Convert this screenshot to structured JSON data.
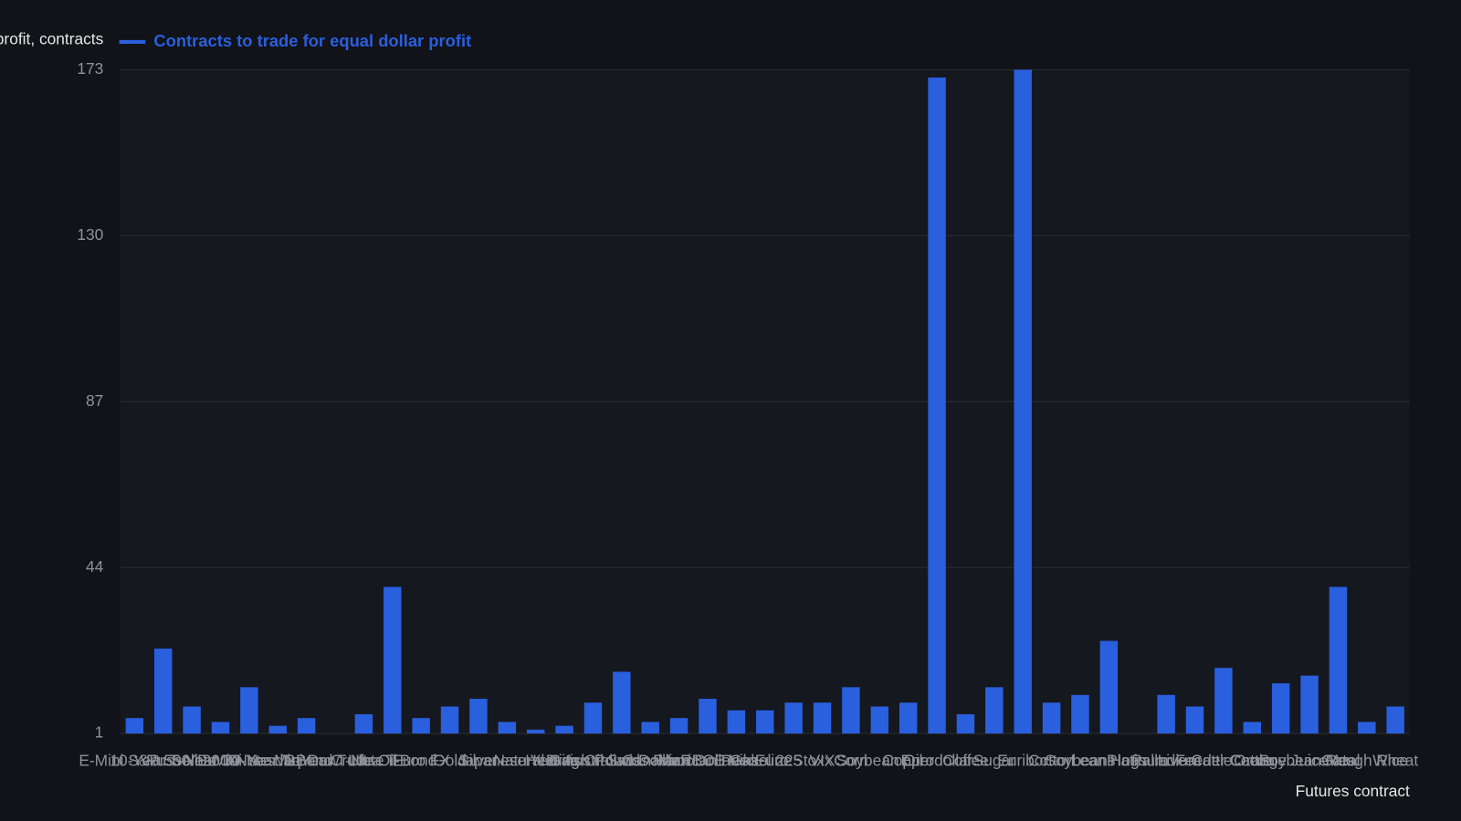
{
  "chart_data": {
    "type": "bar",
    "y_axis_title": "Equal dollar profit, contracts",
    "x_axis_title": "Futures contract",
    "categories": [
      "E-Mini S&P 500",
      "10-Year T-Note",
      "Russell 2000",
      "5-Year T-Note",
      "E-Mini Nasdaq",
      "30-Year T-Bond",
      "Mini Dow",
      "2-Year T-Note",
      "Crude Oil",
      "Ultra T-Bond",
      "Euro FX",
      "Gold",
      "Silver",
      "Japanese Yen",
      "Natural Gas",
      "Heating Oil",
      "British Pound",
      "Australian Dollar",
      "Swiss Franc",
      "Canadian Dollar",
      "Mexican Peso",
      "RBOB Gasoline",
      "Nikkei 225",
      "Euro Stoxx",
      "VIX",
      "Corn",
      "Soybean Oil",
      "Copper",
      "Eurodollar",
      "Coffee",
      "Sugar",
      "Euribor",
      "Cotton",
      "Soybeans",
      "Lean Hogs",
      "Platinum",
      "Palladium",
      "Live Cattle",
      "Feeder Cattle",
      "Cocoa",
      "Orange Juice",
      "Soybean Meal",
      "Oats",
      "Rough Rice",
      "Wheat"
    ],
    "series": [
      {
        "name": "Contracts to trade for equal dollar profit",
        "color": "#2a5fde",
        "values": [
          5,
          23,
          8,
          4,
          13,
          3,
          5,
          1,
          6,
          39,
          5,
          8,
          10,
          4,
          2,
          3,
          9,
          17,
          4,
          5,
          10,
          7,
          7,
          9,
          9,
          13,
          8,
          9,
          171,
          6,
          13,
          173,
          9,
          11,
          25,
          1,
          11,
          8,
          18,
          4,
          14,
          16,
          39,
          4,
          8
        ]
      }
    ],
    "ylim": [
      1,
      173
    ],
    "yticks": [
      1,
      44,
      87,
      130,
      173
    ],
    "grid": true
  }
}
